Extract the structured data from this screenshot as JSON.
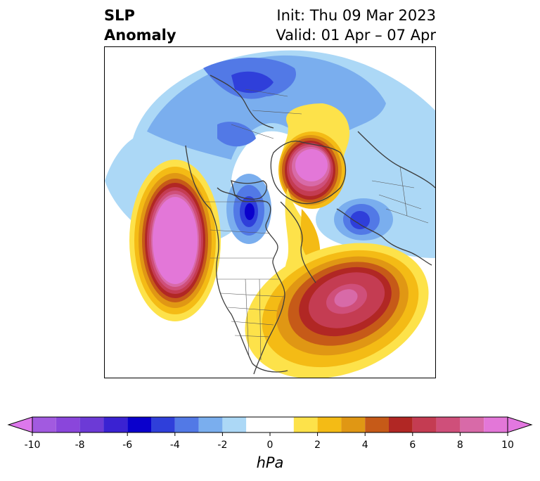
{
  "title": {
    "left_line1": "SLP",
    "left_line2": "Anomaly",
    "init": "Init: Thu 09 Mar 2023",
    "valid": "Valid: 01 Apr – 07 Apr"
  },
  "colorbar": {
    "unit": "hPa",
    "ticks": [
      "-10",
      "-8",
      "-6",
      "-4",
      "-2",
      "0",
      "2",
      "4",
      "6",
      "8",
      "10"
    ],
    "bins": [
      {
        "range": "-10 to -9",
        "color": "#a25ae0"
      },
      {
        "range": "-9 to -8",
        "color": "#8a46db"
      },
      {
        "range": "-8 to -7",
        "color": "#6c3ad6"
      },
      {
        "range": "-7 to -6",
        "color": "#3a22d2"
      },
      {
        "range": "-6 to -5",
        "color": "#0a00cc"
      },
      {
        "range": "-5 to -4",
        "color": "#2f3fda"
      },
      {
        "range": "-4 to -3",
        "color": "#5279e6"
      },
      {
        "range": "-3 to -2",
        "color": "#7aaeee"
      },
      {
        "range": "-2 to -1",
        "color": "#acd8f6"
      },
      {
        "range": "-1 to 1",
        "color": "#ffffff"
      },
      {
        "range": "1 to 2",
        "color": "#fde24a"
      },
      {
        "range": "2 to 3",
        "color": "#f4bb15"
      },
      {
        "range": "3 to 4",
        "color": "#e09714"
      },
      {
        "range": "4 to 5",
        "color": "#c65a18"
      },
      {
        "range": "5 to 6",
        "color": "#b12724"
      },
      {
        "range": "6 to 7",
        "color": "#c43c52"
      },
      {
        "range": "7 to 8",
        "color": "#cf4f7a"
      },
      {
        "range": "8 to 9",
        "color": "#d86aa8"
      },
      {
        "range": "9 to 10",
        "color": "#e377d8"
      }
    ],
    "extend_low_color": "#dd78ec",
    "extend_high_color": "#e377e0"
  },
  "map": {
    "projection": "polar stereographic, north pole",
    "anomaly_centers": [
      {
        "region": "northeastern Pacific",
        "sign": "positive",
        "max_hpa": 10
      },
      {
        "region": "central Arctic / Siberian side",
        "sign": "positive",
        "max_hpa": 10
      },
      {
        "region": "western North Atlantic off US East Coast",
        "sign": "positive",
        "max_hpa": 9
      },
      {
        "region": "Hudson Bay",
        "sign": "negative",
        "min_hpa": -6
      },
      {
        "region": "northern Europe / Scandinavia",
        "sign": "negative",
        "min_hpa": -6
      },
      {
        "region": "central Eurasia",
        "sign": "negative",
        "min_hpa": -5
      }
    ]
  }
}
